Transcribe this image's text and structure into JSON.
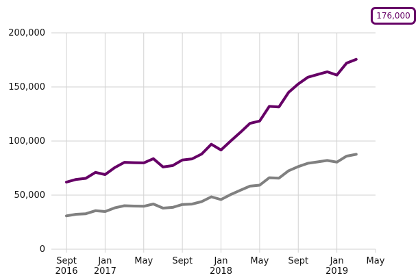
{
  "colors": {
    "series_primary": "#660066",
    "series_secondary": "#808080",
    "grid": "#d2d2d2",
    "axis_text": "#111111"
  },
  "badge": {
    "label": "176,000"
  },
  "chart_data": {
    "type": "line",
    "title": "",
    "xlabel": "",
    "ylabel": "",
    "ylim": [
      0,
      200000
    ],
    "xlim": [
      "2016-09",
      "2019-05"
    ],
    "grid": true,
    "legend": "none",
    "y_ticks": [
      {
        "value": 0,
        "label": "0"
      },
      {
        "value": 50000,
        "label": "50,000"
      },
      {
        "value": 100000,
        "label": "100,000"
      },
      {
        "value": 150000,
        "label": "150,000"
      },
      {
        "value": 200000,
        "label": "200,000"
      }
    ],
    "x_ticks": [
      {
        "date": "2016-09",
        "line1": "Sept",
        "line2": "2016"
      },
      {
        "date": "2017-01",
        "line1": "Jan",
        "line2": "2017"
      },
      {
        "date": "2017-05",
        "line1": "May",
        "line2": ""
      },
      {
        "date": "2017-09",
        "line1": "Sept",
        "line2": ""
      },
      {
        "date": "2018-01",
        "line1": "Jan",
        "line2": "2018"
      },
      {
        "date": "2018-05",
        "line1": "May",
        "line2": ""
      },
      {
        "date": "2018-09",
        "line1": "Sept",
        "line2": ""
      },
      {
        "date": "2019-01",
        "line1": "Jan",
        "line2": "2019"
      },
      {
        "date": "2019-05",
        "line1": "May",
        "line2": ""
      }
    ],
    "x": [
      "2016-09",
      "2016-10",
      "2016-11",
      "2016-12",
      "2017-01",
      "2017-02",
      "2017-03",
      "2017-04",
      "2017-05",
      "2017-06",
      "2017-07",
      "2017-08",
      "2017-09",
      "2017-10",
      "2017-11",
      "2017-12",
      "2018-01",
      "2018-02",
      "2018-03",
      "2018-04",
      "2018-05",
      "2018-06",
      "2018-07",
      "2018-08",
      "2018-09",
      "2018-10",
      "2018-11",
      "2018-12",
      "2019-01",
      "2019-02",
      "2019-03"
    ],
    "series": [
      {
        "color": "#660066",
        "values": [
          62000,
          64500,
          65500,
          71000,
          69000,
          75500,
          80300,
          80000,
          79800,
          83700,
          76000,
          77300,
          82500,
          83500,
          88000,
          97000,
          91700,
          100000,
          108000,
          116300,
          118500,
          132000,
          131500,
          145000,
          152800,
          159000,
          161500,
          164000,
          161000,
          172000,
          175500
        ]
      },
      {
        "color": "#808080",
        "values": [
          30800,
          32300,
          32800,
          35600,
          34800,
          38200,
          40200,
          39900,
          39700,
          41800,
          38000,
          38700,
          41300,
          41700,
          44000,
          48400,
          45900,
          50500,
          54500,
          58300,
          59200,
          66100,
          65700,
          72500,
          76400,
          79400,
          80700,
          82000,
          80500,
          86000,
          87700
        ]
      }
    ]
  }
}
